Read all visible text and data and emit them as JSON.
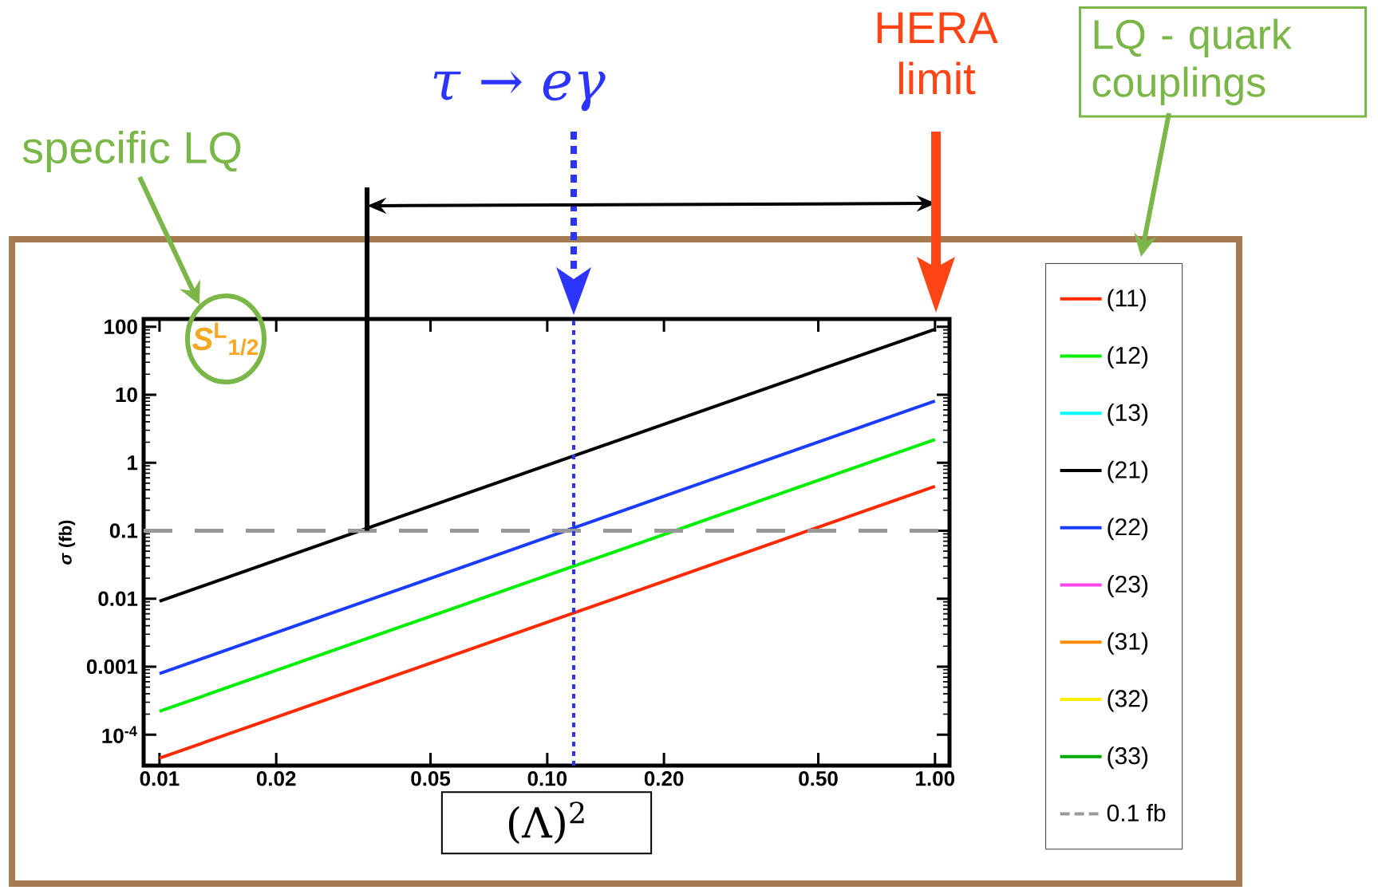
{
  "chart_data": {
    "type": "line",
    "xlabel": "(Λ)$^{2}$",
    "ylabel": "*σ* (fb)",
    "annotations": [
      "specific LQ",
      "*S*$^{L}$$_{1/2}$",
      "LQ - quark couplings",
      "HERA limit"
    ],
    "x": [
      0.01,
      1.0
    ],
    "series": [
      {
        "name": "(11)",
        "color": "#ff2a00",
        "values": [
          4.5e-05,
          0.45
        ]
      },
      {
        "name": "(12)",
        "color": "#00ee00",
        "values": [
          0.00022,
          2.2
        ]
      },
      {
        "name": "(13)",
        "color": "#00ffff",
        "values": [
          null,
          null
        ]
      },
      {
        "name": "(21)",
        "color": "#000000",
        "values": [
          0.0092,
          92
        ]
      },
      {
        "name": "(22)",
        "color": "#1a3cff",
        "values": [
          0.00079,
          8.1
        ]
      },
      {
        "name": "(23)",
        "color": "#ff44ee",
        "values": [
          null,
          null
        ]
      },
      {
        "name": "(31)",
        "color": "#ff8c00",
        "values": [
          null,
          null
        ]
      },
      {
        "name": "(32)",
        "color": "#ffee00",
        "values": [
          null,
          null
        ]
      },
      {
        "name": "(33)",
        "color": "#00aa00",
        "values": [
          null,
          null
        ]
      }
    ],
    "xlim": [
      0.0091,
      1.09
    ],
    "ylim": [
      3.5e-05,
      130
    ],
    "xticks": [
      0.01,
      0.02,
      0.05,
      {
        "value": 0.1,
        "label": "0.10"
      },
      {
        "value": 0.2,
        "label": "0.20"
      },
      {
        "value": 0.5,
        "label": "0.50"
      },
      {
        "value": 1,
        "label": "1.00"
      }
    ],
    "yticks": [
      {
        "value": 0.0001,
        "label": "10$^{-4}$"
      },
      0.001,
      0.01,
      0.1,
      1,
      10,
      100
    ],
    "ref_lines": [
      {
        "axis": "y",
        "value": 0.1,
        "label": "0.1 fb",
        "color": "#999999",
        "line_style": "dashed"
      },
      {
        "axis": "x",
        "value": 0.117,
        "label": "*τ* → *eγ*",
        "color": "#2b35ff",
        "line_style": "dashed"
      },
      {
        "axis": "x",
        "value": 0.0343,
        "label": null,
        "color": "#000000",
        "line_style": "solid"
      }
    ],
    "log": "xy",
    "legend": "right",
    "marker": "none",
    "line_style": "solid"
  }
}
